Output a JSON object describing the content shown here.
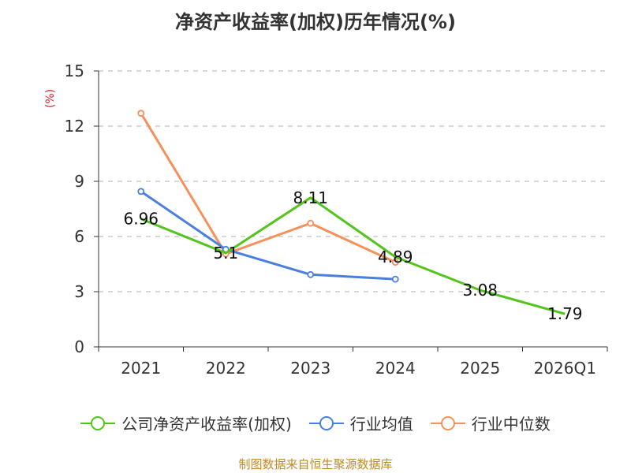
{
  "chart_data": {
    "type": "line",
    "title": "净资产收益率(加权)历年情况(%)",
    "xlabel": "",
    "ylabel": "(%)",
    "categories": [
      "2021",
      "2022",
      "2023",
      "2024",
      "2025",
      "2026Q1"
    ],
    "ylim": [
      0,
      15
    ],
    "yticks": [
      0,
      3,
      6,
      9,
      12,
      15
    ],
    "grid": true,
    "legend_position": "bottom",
    "series": [
      {
        "name": "公司净资产收益率(加权)",
        "color": "#52c41a",
        "values": [
          6.96,
          5.1,
          8.11,
          4.89,
          3.08,
          1.79
        ],
        "labels": [
          "6.96",
          "5.1",
          "8.11",
          "4.89",
          "3.08",
          "1.79"
        ],
        "show_markers": false
      },
      {
        "name": "行业均值",
        "color": "#4a7fe0",
        "values": [
          8.45,
          5.3,
          3.93,
          3.68,
          null,
          null
        ],
        "show_markers": true
      },
      {
        "name": "行业中位数",
        "color": "#f5915a",
        "values": [
          12.7,
          5.05,
          6.72,
          4.6,
          null,
          null
        ],
        "show_markers": true
      }
    ]
  },
  "source": "制图数据来自恒生聚源数据库"
}
